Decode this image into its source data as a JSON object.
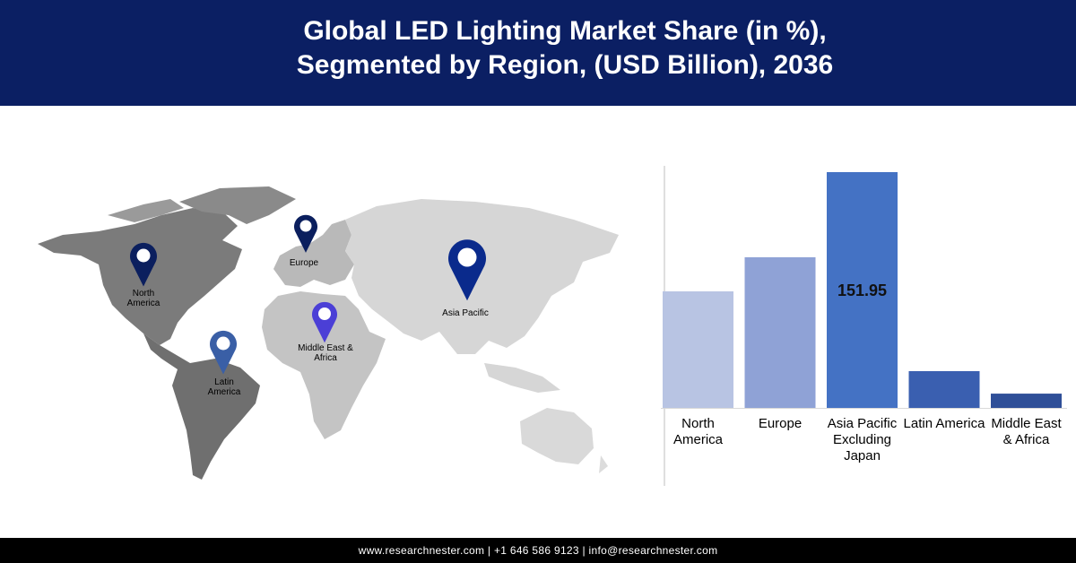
{
  "header": {
    "title_lines": [
      "Global LED Lighting Market Share (in %),",
      "Segmented by Region, (USD Billion), 2036"
    ]
  },
  "map": {
    "pins": [
      {
        "label": "North America",
        "color": "#0b1f5e"
      },
      {
        "label": "Europe",
        "color": "#0b1f5e"
      },
      {
        "label": "Asia Pacific",
        "color": "#0a2a8c"
      },
      {
        "label": "Middle East & Africa",
        "color": "#4b3fd6"
      },
      {
        "label": "Latin America",
        "color": "#3a5fa6"
      }
    ]
  },
  "chart_data": {
    "type": "bar",
    "categories": [
      "North America",
      "Europe",
      "Asia Pacific Excluding Japan",
      "Latin America",
      "Middle East & Africa"
    ],
    "values": [
      75.1,
      97.1,
      151.95,
      23.7,
      9.2
    ],
    "colors": [
      "#b8c4e3",
      "#8fa2d6",
      "#4472c4",
      "#3a5fb0",
      "#2f4f98"
    ]
  },
  "footer": {
    "text": "www.researchnester.com | +1 646 586 9123 | info@researchnester.com"
  }
}
